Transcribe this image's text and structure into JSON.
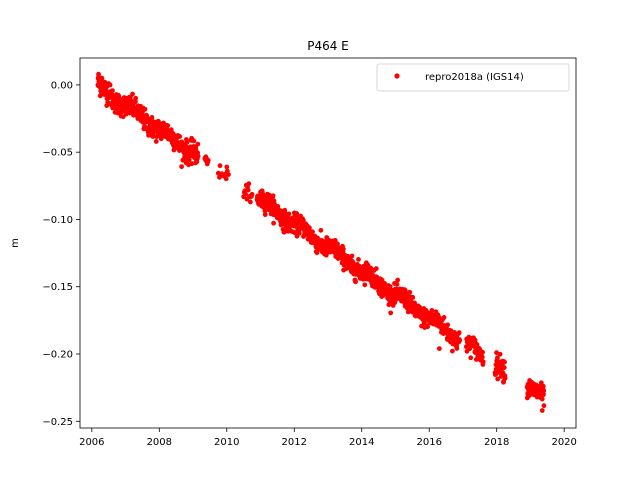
{
  "chart_data": {
    "type": "scatter",
    "title": "P464 E",
    "xlabel": "",
    "ylabel": "m",
    "xlim": [
      2005.65,
      2020.35
    ],
    "ylim": [
      -0.255,
      0.02
    ],
    "x_ticks": [
      2006,
      2008,
      2010,
      2012,
      2014,
      2016,
      2018,
      2020
    ],
    "x_tick_labels": [
      "2006",
      "2008",
      "2010",
      "2012",
      "2014",
      "2016",
      "2018",
      "2020"
    ],
    "y_ticks": [
      0.0,
      -0.05,
      -0.1,
      -0.15,
      -0.2,
      -0.25
    ],
    "y_tick_labels": [
      "0.00",
      "−0.05",
      "−0.10",
      "−0.15",
      "−0.20",
      "−0.25"
    ],
    "grid": false,
    "legend_position": "top-right",
    "series": [
      {
        "name": "repro2018a (IGS14)",
        "color": "#ff0000",
        "marker": "circle",
        "segments": [
          {
            "x_start": 2006.18,
            "x_end": 2009.15,
            "noise": 0.004,
            "count": 420
          },
          {
            "x_start": 2009.35,
            "x_end": 2009.45,
            "noise": 0.002,
            "count": 8
          },
          {
            "x_start": 2009.75,
            "x_end": 2010.05,
            "noise": 0.002,
            "count": 10
          },
          {
            "x_start": 2010.5,
            "x_end": 2010.75,
            "noise": 0.003,
            "count": 14
          },
          {
            "x_start": 2010.9,
            "x_end": 2016.9,
            "noise": 0.0035,
            "count": 900
          },
          {
            "x_start": 2017.1,
            "x_end": 2017.6,
            "noise": 0.0035,
            "count": 55
          },
          {
            "x_start": 2017.95,
            "x_end": 2018.25,
            "noise": 0.004,
            "count": 35
          },
          {
            "x_start": 2018.9,
            "x_end": 2019.4,
            "noise": 0.0035,
            "count": 80
          }
        ],
        "trend": {
          "slope": -0.01755,
          "intercept_at_2006": 0.002
        },
        "points": [
          {
            "x": 2006.2,
            "y": 0.008
          },
          {
            "x": 2006.3,
            "y": 0.005
          },
          {
            "x": 2006.5,
            "y": 0.001
          },
          {
            "x": 2007.0,
            "y": -0.012
          },
          {
            "x": 2007.5,
            "y": -0.02
          },
          {
            "x": 2008.0,
            "y": -0.03
          },
          {
            "x": 2008.5,
            "y": -0.038
          },
          {
            "x": 2009.0,
            "y": -0.046
          },
          {
            "x": 2008.85,
            "y": -0.056
          },
          {
            "x": 2009.4,
            "y": -0.055
          },
          {
            "x": 2009.8,
            "y": -0.06
          },
          {
            "x": 2010.0,
            "y": -0.061
          },
          {
            "x": 2010.6,
            "y": -0.075
          },
          {
            "x": 2010.7,
            "y": -0.087
          },
          {
            "x": 2011.0,
            "y": -0.086
          },
          {
            "x": 2011.5,
            "y": -0.093
          },
          {
            "x": 2012.0,
            "y": -0.102
          },
          {
            "x": 2012.5,
            "y": -0.112
          },
          {
            "x": 2013.0,
            "y": -0.12
          },
          {
            "x": 2013.5,
            "y": -0.128
          },
          {
            "x": 2014.0,
            "y": -0.137
          },
          {
            "x": 2014.5,
            "y": -0.146
          },
          {
            "x": 2015.0,
            "y": -0.155
          },
          {
            "x": 2015.5,
            "y": -0.162
          },
          {
            "x": 2016.0,
            "y": -0.17
          },
          {
            "x": 2016.5,
            "y": -0.18
          },
          {
            "x": 2016.9,
            "y": -0.19
          },
          {
            "x": 2016.3,
            "y": -0.196
          },
          {
            "x": 2017.2,
            "y": -0.196
          },
          {
            "x": 2017.5,
            "y": -0.201
          },
          {
            "x": 2018.0,
            "y": -0.205
          },
          {
            "x": 2018.2,
            "y": -0.221
          },
          {
            "x": 2018.95,
            "y": -0.222
          },
          {
            "x": 2019.2,
            "y": -0.232
          },
          {
            "x": 2019.35,
            "y": -0.242
          }
        ]
      }
    ]
  }
}
